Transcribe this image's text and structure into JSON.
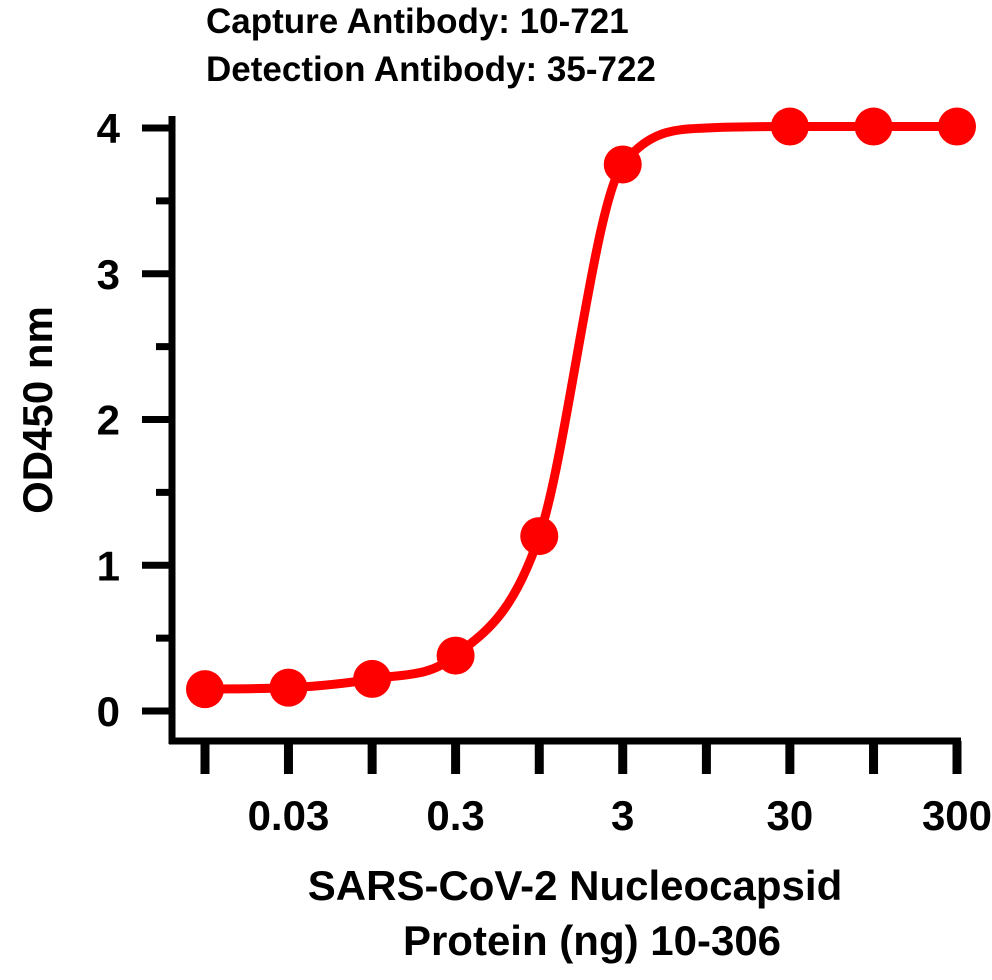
{
  "chart_data": {
    "type": "line",
    "title_lines": [
      "Capture Antibody: 10-721",
      "Detection Antibody: 35-722"
    ],
    "xlabel_lines": [
      "SARS-CoV-2 Nucleocapsid",
      "Protein (ng) 10-306"
    ],
    "ylabel": "OD450 nm",
    "x_scale": "log",
    "x_tick_labels": [
      "0.03",
      "0.3",
      "3",
      "30",
      "300"
    ],
    "y_ticks": [
      0,
      1,
      2,
      3,
      4
    ],
    "ylim": [
      0,
      4
    ],
    "grid": false,
    "legend": "none",
    "series": [
      {
        "color": "#ff0000",
        "x": [
          0.0095,
          0.03,
          0.095,
          0.3,
          0.95,
          3,
          9.5,
          30,
          95,
          300
        ],
        "points_shown": [
          true,
          true,
          true,
          true,
          true,
          true,
          false,
          true,
          true,
          true
        ],
        "y": [
          0.15,
          0.16,
          0.22,
          0.38,
          1.2,
          3.75,
          4.0,
          4.01,
          4.01,
          4.01
        ]
      }
    ]
  }
}
